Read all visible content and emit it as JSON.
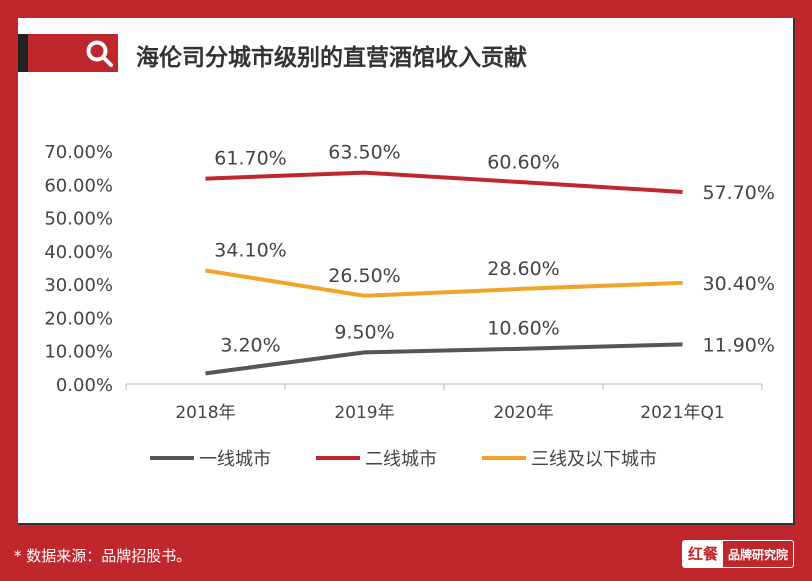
{
  "title": "海伦司分城市级别的直营酒馆收入贡献",
  "footnote": "* 数据来源：品牌招股书。",
  "brand": {
    "logo": "红餐",
    "text": "品牌研究院"
  },
  "chart_data": {
    "type": "line",
    "title": "海伦司分城市级别的直营酒馆收入贡献",
    "categories": [
      "2018年",
      "2019年",
      "2020年",
      "2021年Q1"
    ],
    "ylim": [
      0,
      70
    ],
    "yticks": [
      "0.00%",
      "10.00%",
      "20.00%",
      "30.00%",
      "40.00%",
      "50.00%",
      "60.00%",
      "70.00%"
    ],
    "legend_position": "bottom",
    "series": [
      {
        "name": "一线城市",
        "color": "#555555",
        "values": [
          3.2,
          9.5,
          10.6,
          11.9
        ],
        "labels": [
          "3.20%",
          "9.50%",
          "10.60%",
          "11.90%"
        ]
      },
      {
        "name": "二线城市",
        "color": "#c0272d",
        "values": [
          61.7,
          63.5,
          60.6,
          57.7
        ],
        "labels": [
          "61.70%",
          "63.50%",
          "60.60%",
          "57.70%"
        ]
      },
      {
        "name": "三线及以下城市",
        "color": "#f2a32a",
        "values": [
          34.1,
          26.5,
          28.6,
          30.4
        ],
        "labels": [
          "34.10%",
          "26.50%",
          "28.60%",
          "30.40%"
        ]
      }
    ]
  }
}
